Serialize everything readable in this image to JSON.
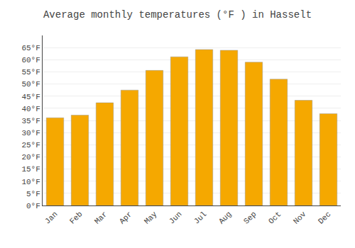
{
  "chart_data": {
    "type": "bar",
    "title": "Average monthly temperatures (°F ) in Hasselt",
    "categories": [
      "Jan",
      "Feb",
      "Mar",
      "Apr",
      "May",
      "Jun",
      "Jul",
      "Aug",
      "Sep",
      "Oct",
      "Nov",
      "Dec"
    ],
    "values": [
      36.1,
      37.2,
      42.3,
      47.5,
      55.6,
      61.2,
      64.2,
      63.9,
      59.0,
      52.0,
      43.3,
      37.8
    ],
    "color": "#F5A800",
    "ylim": [
      0,
      70
    ],
    "yticks": [
      {
        "value": 0,
        "label": "0°F"
      },
      {
        "value": 5,
        "label": "5°F"
      },
      {
        "value": 10,
        "label": "10°F"
      },
      {
        "value": 15,
        "label": "15°F"
      },
      {
        "value": 20,
        "label": "20°F"
      },
      {
        "value": 25,
        "label": "25°F"
      },
      {
        "value": 30,
        "label": "30°F"
      },
      {
        "value": 35,
        "label": "35°F"
      },
      {
        "value": 40,
        "label": "40°F"
      },
      {
        "value": 45,
        "label": "45°F"
      },
      {
        "value": 50,
        "label": "50°F"
      },
      {
        "value": 55,
        "label": "55°F"
      },
      {
        "value": 60,
        "label": "60°F"
      },
      {
        "value": 65,
        "label": "65°F"
      }
    ],
    "grid": true
  }
}
